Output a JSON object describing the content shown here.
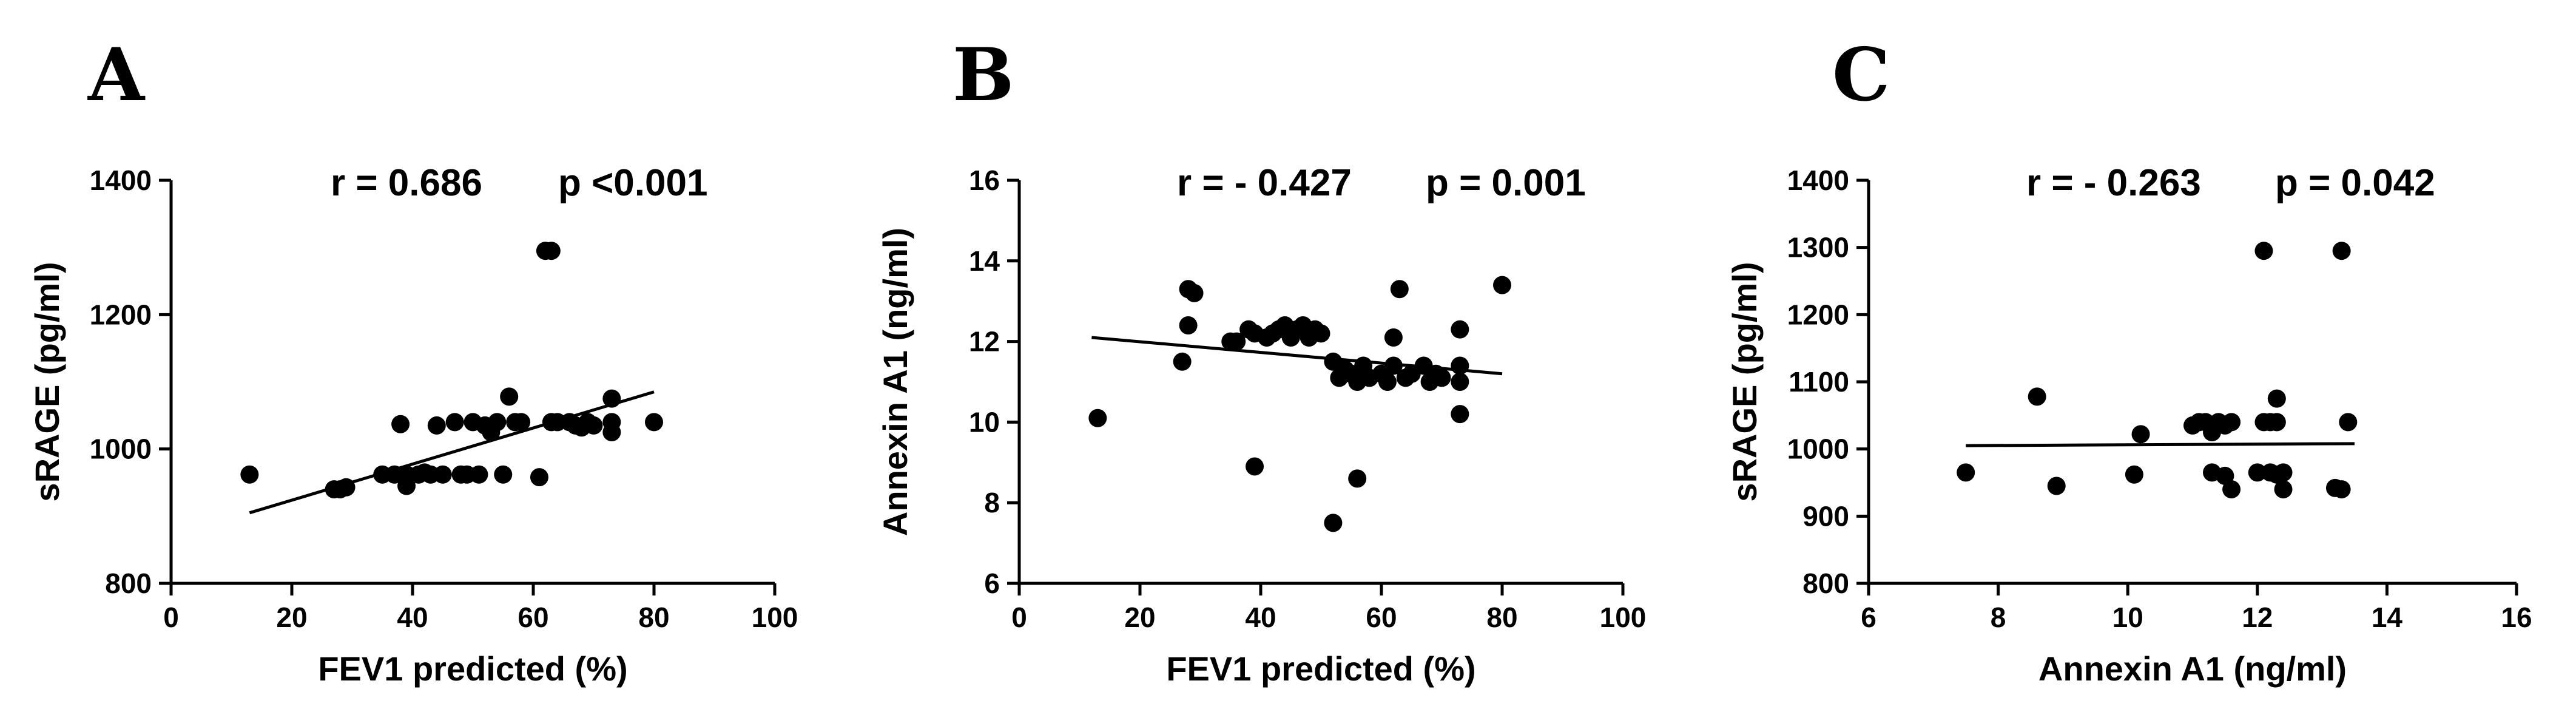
{
  "chart_data": [
    {
      "type": "scatter",
      "panel": "A",
      "stat_r": "r = 0.686",
      "stat_p": "p <0.001",
      "xlabel": "FEV1 predicted (%)",
      "ylabel": "sRAGE (pg/ml)",
      "xlim": [
        0,
        100
      ],
      "ylim": [
        800,
        1400
      ],
      "xticks": [
        0,
        20,
        40,
        60,
        80,
        100
      ],
      "yticks": [
        800,
        1000,
        1200,
        1400
      ],
      "fit": [
        [
          13,
          905
        ],
        [
          80,
          1085
        ]
      ],
      "points": [
        [
          13,
          962
        ],
        [
          27,
          940
        ],
        [
          28,
          940
        ],
        [
          29,
          943
        ],
        [
          35,
          962
        ],
        [
          37,
          962
        ],
        [
          38,
          1037
        ],
        [
          39,
          945
        ],
        [
          39,
          962
        ],
        [
          41,
          962
        ],
        [
          42,
          965
        ],
        [
          43,
          962
        ],
        [
          44,
          1035
        ],
        [
          45,
          962
        ],
        [
          47,
          1040
        ],
        [
          48,
          962
        ],
        [
          49,
          962
        ],
        [
          50,
          1040
        ],
        [
          51,
          962
        ],
        [
          52,
          1035
        ],
        [
          53,
          1025
        ],
        [
          54,
          1040
        ],
        [
          55,
          962
        ],
        [
          56,
          1078
        ],
        [
          57,
          1040
        ],
        [
          58,
          1040
        ],
        [
          61,
          958
        ],
        [
          62,
          1295
        ],
        [
          63,
          1295
        ],
        [
          63,
          1040
        ],
        [
          64,
          1040
        ],
        [
          66,
          1040
        ],
        [
          67,
          1035
        ],
        [
          68,
          1032
        ],
        [
          69,
          1040
        ],
        [
          70,
          1035
        ],
        [
          73,
          1075
        ],
        [
          73,
          1040
        ],
        [
          73,
          1025
        ],
        [
          80,
          1040
        ]
      ]
    },
    {
      "type": "scatter",
      "panel": "B",
      "stat_r": "r = - 0.427",
      "stat_p": "p = 0.001",
      "xlabel": "FEV1 predicted (%)",
      "ylabel": "Annexin A1 (ng/ml)",
      "xlim": [
        0,
        100
      ],
      "ylim": [
        6,
        16
      ],
      "xticks": [
        0,
        20,
        40,
        60,
        80,
        100
      ],
      "yticks": [
        6,
        8,
        10,
        12,
        14,
        16
      ],
      "fit": [
        [
          12,
          12.1
        ],
        [
          80,
          11.2
        ]
      ],
      "points": [
        [
          13,
          10.1
        ],
        [
          27,
          11.5
        ],
        [
          28,
          12.4
        ],
        [
          28,
          13.3
        ],
        [
          29,
          13.2
        ],
        [
          35,
          12.0
        ],
        [
          36,
          12.0
        ],
        [
          38,
          12.3
        ],
        [
          39,
          8.9
        ],
        [
          39,
          12.2
        ],
        [
          41,
          12.1
        ],
        [
          42,
          12.2
        ],
        [
          43,
          12.3
        ],
        [
          44,
          12.4
        ],
        [
          45,
          12.1
        ],
        [
          46,
          12.3
        ],
        [
          47,
          12.4
        ],
        [
          48,
          12.1
        ],
        [
          49,
          12.3
        ],
        [
          50,
          12.2
        ],
        [
          52,
          11.5
        ],
        [
          52,
          7.5
        ],
        [
          53,
          11.1
        ],
        [
          54,
          11.3
        ],
        [
          55,
          11.2
        ],
        [
          56,
          8.6
        ],
        [
          56,
          11.0
        ],
        [
          57,
          11.4
        ],
        [
          58,
          11.1
        ],
        [
          60,
          11.2
        ],
        [
          61,
          11.0
        ],
        [
          62,
          12.1
        ],
        [
          62,
          11.4
        ],
        [
          63,
          13.3
        ],
        [
          64,
          11.1
        ],
        [
          65,
          11.2
        ],
        [
          67,
          11.4
        ],
        [
          68,
          11.0
        ],
        [
          69,
          11.2
        ],
        [
          70,
          11.1
        ],
        [
          73,
          12.3
        ],
        [
          73,
          11.4
        ],
        [
          73,
          11.0
        ],
        [
          73,
          10.2
        ],
        [
          80,
          13.4
        ]
      ]
    },
    {
      "type": "scatter",
      "panel": "C",
      "stat_r": "r = - 0.263",
      "stat_p": "p = 0.042",
      "xlabel": "Annexin A1 (ng/ml)",
      "ylabel": "sRAGE (pg/ml)",
      "xlim": [
        6,
        16
      ],
      "ylim": [
        800,
        1400
      ],
      "xticks": [
        6,
        8,
        10,
        12,
        14,
        16
      ],
      "yticks": [
        800,
        900,
        1000,
        1100,
        1200,
        1300,
        1400
      ],
      "fit": [
        [
          7.5,
          1005
        ],
        [
          13.5,
          1008
        ]
      ],
      "points": [
        [
          7.5,
          965
        ],
        [
          8.6,
          1078
        ],
        [
          8.9,
          945
        ],
        [
          10.1,
          962
        ],
        [
          10.2,
          1022
        ],
        [
          11.0,
          1035
        ],
        [
          11.1,
          1040
        ],
        [
          11.2,
          1040
        ],
        [
          11.3,
          1025
        ],
        [
          11.3,
          965
        ],
        [
          11.4,
          1040
        ],
        [
          11.5,
          1035
        ],
        [
          11.5,
          960
        ],
        [
          11.6,
          940
        ],
        [
          11.6,
          1040
        ],
        [
          12.0,
          965
        ],
        [
          12.1,
          1040
        ],
        [
          12.1,
          1295
        ],
        [
          12.2,
          965
        ],
        [
          12.2,
          1040
        ],
        [
          12.3,
          1040
        ],
        [
          12.3,
          1075
        ],
        [
          12.3,
          962
        ],
        [
          12.4,
          940
        ],
        [
          12.4,
          965
        ],
        [
          13.2,
          942
        ],
        [
          13.3,
          940
        ],
        [
          13.3,
          1295
        ],
        [
          13.4,
          1040
        ]
      ]
    }
  ]
}
